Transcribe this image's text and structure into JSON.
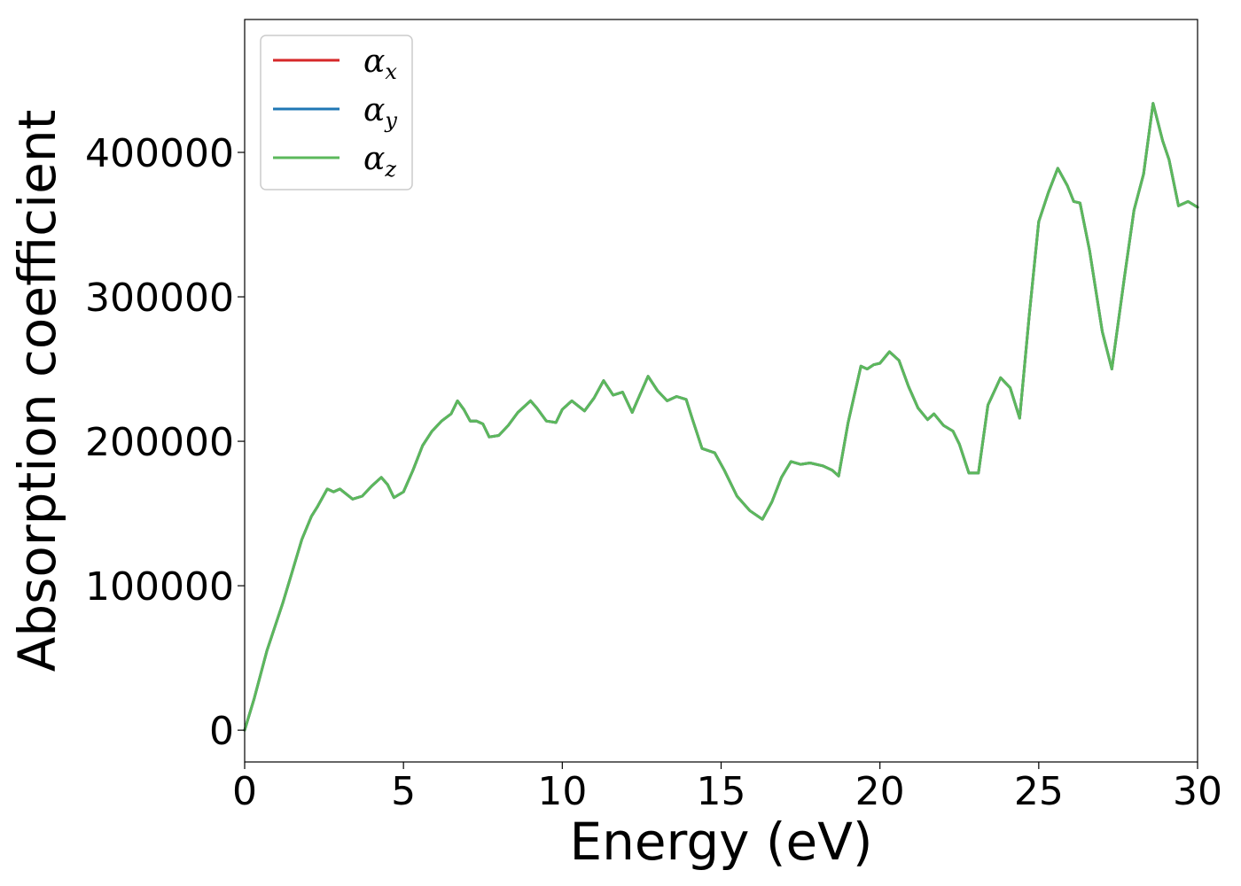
{
  "chart_data": {
    "type": "line",
    "title": "",
    "xlabel": "Energy (eV)",
    "ylabel": "Absorption coefficient",
    "xlim": [
      0,
      30
    ],
    "ylim": [
      -22000,
      492000
    ],
    "xticks": [
      0,
      5,
      10,
      15,
      20,
      25,
      30
    ],
    "yticks": [
      0,
      100000,
      200000,
      300000,
      400000
    ],
    "xtick_labels": [
      "0",
      "5",
      "10",
      "15",
      "20",
      "25",
      "30"
    ],
    "ytick_labels": [
      "0",
      "100000",
      "200000",
      "300000",
      "400000"
    ],
    "grid": false,
    "legend_position": "top-left",
    "colors": {
      "alpha_x": "#d62728",
      "alpha_y": "#1f77b4",
      "alpha_z": "#5cb85c"
    },
    "legend": [
      {
        "base": "α",
        "sub": "x",
        "color": "#d62728"
      },
      {
        "base": "α",
        "sub": "y",
        "color": "#1f77b4"
      },
      {
        "base": "α",
        "sub": "z",
        "color": "#5cb85c"
      }
    ],
    "x": [
      0,
      0.3,
      0.7,
      1.2,
      1.5,
      1.8,
      2.1,
      2.3,
      2.6,
      2.8,
      3.0,
      3.4,
      3.7,
      4.0,
      4.3,
      4.5,
      4.7,
      5.0,
      5.3,
      5.6,
      5.9,
      6.2,
      6.5,
      6.7,
      6.9,
      7.1,
      7.3,
      7.5,
      7.7,
      8.0,
      8.3,
      8.6,
      9.0,
      9.2,
      9.5,
      9.8,
      10.0,
      10.3,
      10.7,
      11.0,
      11.3,
      11.6,
      11.9,
      12.2,
      12.4,
      12.7,
      13.0,
      13.3,
      13.6,
      13.9,
      14.1,
      14.4,
      14.8,
      15.1,
      15.5,
      15.9,
      16.3,
      16.6,
      16.9,
      17.2,
      17.5,
      17.8,
      18.2,
      18.5,
      18.7,
      19.0,
      19.4,
      19.6,
      19.8,
      20.0,
      20.3,
      20.6,
      20.9,
      21.2,
      21.5,
      21.7,
      22.0,
      22.3,
      22.5,
      22.8,
      23.1,
      23.4,
      23.8,
      24.1,
      24.4,
      24.7,
      25.0,
      25.3,
      25.6,
      25.9,
      26.1,
      26.3,
      26.6,
      27.0,
      27.3,
      27.7,
      28.0,
      28.3,
      28.6,
      28.9,
      29.1,
      29.4,
      29.7,
      30.0
    ],
    "series": [
      {
        "name": "αx",
        "values": [
          0,
          22000,
          55000,
          88000,
          110000,
          132000,
          148000,
          155000,
          167000,
          165000,
          167000,
          160000,
          162000,
          169000,
          175000,
          170000,
          161000,
          165000,
          180000,
          197000,
          207000,
          214000,
          219000,
          228000,
          222000,
          214000,
          214000,
          212000,
          203000,
          204000,
          211000,
          220000,
          228000,
          223000,
          214000,
          213000,
          222000,
          228000,
          221000,
          230000,
          242000,
          232000,
          234000,
          220000,
          230000,
          245000,
          235000,
          228000,
          231000,
          229000,
          215000,
          195000,
          192000,
          180000,
          162000,
          152000,
          146000,
          158000,
          175000,
          186000,
          184000,
          185000,
          183000,
          180000,
          176000,
          213000,
          252000,
          250000,
          253000,
          254000,
          262000,
          256000,
          238000,
          223000,
          215000,
          219000,
          211000,
          207000,
          198000,
          178000,
          178000,
          225000,
          244000,
          237000,
          216000,
          287000,
          352000,
          372000,
          389000,
          377000,
          366000,
          365000,
          332000,
          276000,
          250000,
          314000,
          360000,
          385000,
          434000,
          408000,
          395000,
          363000,
          366000,
          362000
        ]
      },
      {
        "name": "αy",
        "values": [
          0,
          22000,
          55000,
          88000,
          110000,
          132000,
          148000,
          155000,
          167000,
          165000,
          167000,
          160000,
          162000,
          169000,
          175000,
          170000,
          161000,
          165000,
          180000,
          197000,
          207000,
          214000,
          219000,
          228000,
          222000,
          214000,
          214000,
          212000,
          203000,
          204000,
          211000,
          220000,
          228000,
          223000,
          214000,
          213000,
          222000,
          228000,
          221000,
          230000,
          242000,
          232000,
          234000,
          220000,
          230000,
          245000,
          235000,
          228000,
          231000,
          229000,
          215000,
          195000,
          192000,
          180000,
          162000,
          152000,
          146000,
          158000,
          175000,
          186000,
          184000,
          185000,
          183000,
          180000,
          176000,
          213000,
          252000,
          250000,
          253000,
          254000,
          262000,
          256000,
          238000,
          223000,
          215000,
          219000,
          211000,
          207000,
          198000,
          178000,
          178000,
          225000,
          244000,
          237000,
          216000,
          287000,
          352000,
          372000,
          389000,
          377000,
          366000,
          365000,
          332000,
          276000,
          250000,
          314000,
          360000,
          385000,
          434000,
          408000,
          395000,
          363000,
          366000,
          362000
        ]
      },
      {
        "name": "αz",
        "values": [
          0,
          22000,
          55000,
          88000,
          110000,
          132000,
          148000,
          155000,
          167000,
          165000,
          167000,
          160000,
          162000,
          169000,
          175000,
          170000,
          161000,
          165000,
          180000,
          197000,
          207000,
          214000,
          219000,
          228000,
          222000,
          214000,
          214000,
          212000,
          203000,
          204000,
          211000,
          220000,
          228000,
          223000,
          214000,
          213000,
          222000,
          228000,
          221000,
          230000,
          242000,
          232000,
          234000,
          220000,
          230000,
          245000,
          235000,
          228000,
          231000,
          229000,
          215000,
          195000,
          192000,
          180000,
          162000,
          152000,
          146000,
          158000,
          175000,
          186000,
          184000,
          185000,
          183000,
          180000,
          176000,
          213000,
          252000,
          250000,
          253000,
          254000,
          262000,
          256000,
          238000,
          223000,
          215000,
          219000,
          211000,
          207000,
          198000,
          178000,
          178000,
          225000,
          244000,
          237000,
          216000,
          287000,
          352000,
          372000,
          389000,
          377000,
          366000,
          365000,
          332000,
          276000,
          250000,
          314000,
          360000,
          385000,
          434000,
          408000,
          395000,
          363000,
          366000,
          362000
        ]
      }
    ]
  }
}
